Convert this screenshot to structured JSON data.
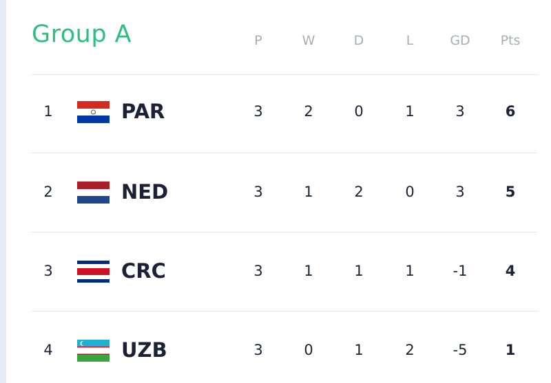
{
  "title": "Group A",
  "columns": [
    "P",
    "W",
    "D",
    "L",
    "GD",
    "Pts"
  ],
  "rows": [
    {
      "rank": 1,
      "team": "PAR",
      "stats": [
        3,
        2,
        0,
        1,
        3,
        6
      ]
    },
    {
      "rank": 2,
      "team": "NED",
      "stats": [
        3,
        1,
        2,
        0,
        3,
        5
      ]
    },
    {
      "rank": 3,
      "team": "CRC",
      "stats": [
        3,
        1,
        1,
        1,
        -1,
        4
      ]
    },
    {
      "rank": 4,
      "team": "UZB",
      "stats": [
        3,
        0,
        1,
        2,
        -5,
        1
      ]
    }
  ]
}
